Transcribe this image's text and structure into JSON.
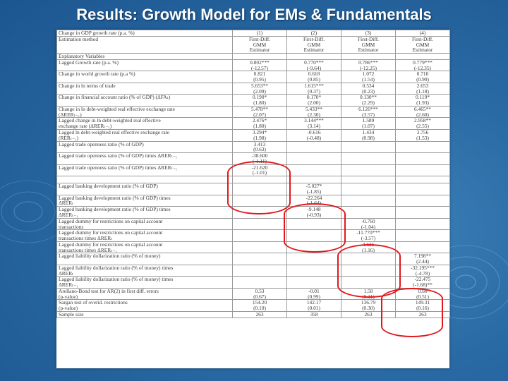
{
  "title": "Results: Growth Model for EMs & Fundamentals",
  "table": {
    "header_rows": [
      {
        "label": "Change in GDP growth rate (p.a. %)",
        "cells": [
          "(1)",
          "(2)",
          "(3)",
          "(4)"
        ]
      },
      {
        "label": "Estimation method",
        "cells": [
          "First-Diff. GMM Estimator",
          "First-Diff. GMM Estimator",
          "First-Diff. GMM Estimator",
          "First-Diff. GMM Estimator"
        ]
      },
      {
        "label": "Explanatory Variables",
        "cells": [
          "",
          "",
          "",
          ""
        ]
      }
    ],
    "rows": [
      {
        "label": [
          "Lagged Growth rate (p.a. %)"
        ],
        "cells": [
          [
            "0.802***",
            "(-12.57)"
          ],
          [
            "0.770***",
            "(-9.64)"
          ],
          [
            "0.786***",
            "(-12.25)"
          ],
          [
            "0.779***",
            "(-12.35)"
          ]
        ]
      },
      {
        "label": [
          "Change in world growth rate (p.a %)"
        ],
        "cells": [
          [
            "0.821",
            "(0.95)"
          ],
          [
            "0.618",
            "(0.85)"
          ],
          [
            "1.072",
            "(1.54)"
          ],
          [
            "0.710",
            "(0.90)"
          ]
        ]
      },
      {
        "label": [
          "Change in ln terms of trade"
        ],
        "cells": [
          [
            "5.653**",
            "(2.09)"
          ],
          [
            "1.615***",
            "(0.37)"
          ],
          [
            "0.534",
            "(0.23)"
          ],
          [
            "2.653",
            "(1.18)"
          ]
        ]
      },
      {
        "label": [
          "Change in financial account ratio (% of GDP) (ΔFAₜ)"
        ],
        "cells": [
          [
            "0.190*",
            "(1.80)"
          ],
          [
            "0.170*",
            "(2.00)"
          ],
          [
            "0.130**",
            "(2.29)"
          ],
          [
            "0.119*",
            "(1.93)"
          ]
        ]
      },
      {
        "label": [
          "Change in ln debt-weighted real effective exchange rate",
          "(ΔRERₜ₋₁)"
        ],
        "cells": [
          [
            "5.478**",
            "(2.07)"
          ],
          [
            "5.433**",
            "(2.30)"
          ],
          [
            "6.126***",
            "(3.57)"
          ],
          [
            "6.465**",
            "(2.60)"
          ]
        ]
      },
      {
        "label": [
          "Lagged change in ln debt-weighted real effective",
          "exchange rate (ΔRERₜ₋₁)"
        ],
        "cells": [
          [
            "2.476*",
            "(1.80)"
          ],
          [
            "3.144***",
            "(3.14)"
          ],
          [
            "1.589",
            "(1.07)"
          ],
          [
            "2.958**",
            "(2.55)"
          ]
        ]
      },
      {
        "label": [
          "Lagged ln debt-weighted real effective exchange rate",
          "(RERₜ₋₁)"
        ],
        "cells": [
          [
            "3.294*",
            "(1.98)"
          ],
          [
            "-0.616",
            "(-0.48)"
          ],
          [
            "1.434",
            "(0.98)"
          ],
          [
            "3.756",
            "(1.53)"
          ]
        ]
      },
      {
        "label": [
          "Lagged trade openness ratio (% of GDP)"
        ],
        "cells": [
          [
            "3.413",
            "(0.63)"
          ],
          [],
          [],
          []
        ]
      },
      {
        "label": [
          "Lagged trade openness ratio (% of GDP) times ΔRERₜ₋₁"
        ],
        "cells": [
          [
            "-38.600",
            "(-1.11)"
          ],
          [],
          [],
          []
        ]
      },
      {
        "label": [
          "Lagged trade openness ratio (% of GDP) times ΔRERₜ₋₁"
        ],
        "cells": [
          [
            "-21.620",
            "(-1.01)"
          ],
          [],
          [],
          []
        ]
      },
      {
        "label": [
          ""
        ],
        "cells": [
          [],
          [],
          [],
          []
        ]
      },
      {
        "label": [
          "Lagged banking development ratio (% of GDP)"
        ],
        "cells": [
          [],
          [
            "-5.027*",
            "(-1.85)"
          ],
          [],
          []
        ]
      },
      {
        "label": [
          "Lagged banking development ratio (% of GDP) times",
          "ΔRERₜ"
        ],
        "cells": [
          [],
          [
            "-22.264",
            "(-1.64)"
          ],
          [],
          []
        ]
      },
      {
        "label": [
          "Lagged banking development ratio (% of GDP) times",
          "ΔRERₜ₋₁"
        ],
        "cells": [
          [],
          [
            "-9.148",
            "(-0.93)"
          ],
          [],
          []
        ]
      },
      {
        "label": [
          "Lagged dummy for restrictions on capital account",
          "transactions"
        ],
        "cells": [
          [],
          [],
          [
            "-0.760",
            "(-1.04)"
          ],
          []
        ]
      },
      {
        "label": [
          "Lagged dummy for restrictions on capital account",
          "transactions times ΔRERₜ"
        ],
        "cells": [
          [],
          [],
          [
            "-11.770***",
            "(-3.57)"
          ],
          []
        ]
      },
      {
        "label": [
          "Lagged dummy for restrictions on capital account",
          "transactions times ΔRERₜ₋₁"
        ],
        "cells": [
          [],
          [],
          [
            "4.635",
            "(1.16)"
          ],
          []
        ]
      },
      {
        "label": [
          "Lagged liability dollarization ratio (% of money)"
        ],
        "cells": [
          [],
          [],
          [],
          [
            "7.198**",
            "(2.44)"
          ]
        ]
      },
      {
        "label": [
          "Lagged liability dollarization ratio (% of money) times",
          "ΔRERₜ"
        ],
        "cells": [
          [],
          [],
          [],
          [
            "-32.195***",
            "(-4.78)"
          ]
        ]
      },
      {
        "label": [
          "Lagged liability dollarization ratio (% of money) times",
          "ΔRERₜ₋₁"
        ],
        "cells": [
          [],
          [],
          [],
          [
            "-22.475",
            "(-1.68)**"
          ]
        ]
      },
      {
        "label": [
          "Arellano-Bond test for AR(2) in first diff. errors",
          "(p-value)"
        ],
        "cells": [
          [
            "0.53",
            "(0.67)"
          ],
          [
            "-0.01",
            "(0.99)"
          ],
          [
            "1.58",
            "(0.11)"
          ],
          [
            "0.66",
            "(0.51)"
          ]
        ]
      },
      {
        "label": [
          "Sargan test of overid. restrictions",
          "(p-value)"
        ],
        "cells": [
          [
            "154.20",
            "(0.10)"
          ],
          [
            "142.17",
            "(0.01)"
          ],
          [
            "136.79",
            "(0.30)"
          ],
          [
            "149.31",
            "(0.16)"
          ]
        ]
      },
      {
        "label": [
          "Sample size"
        ],
        "cells": [
          [
            "263"
          ],
          [
            "358"
          ],
          [
            "263"
          ],
          [
            "263"
          ]
        ]
      }
    ]
  }
}
